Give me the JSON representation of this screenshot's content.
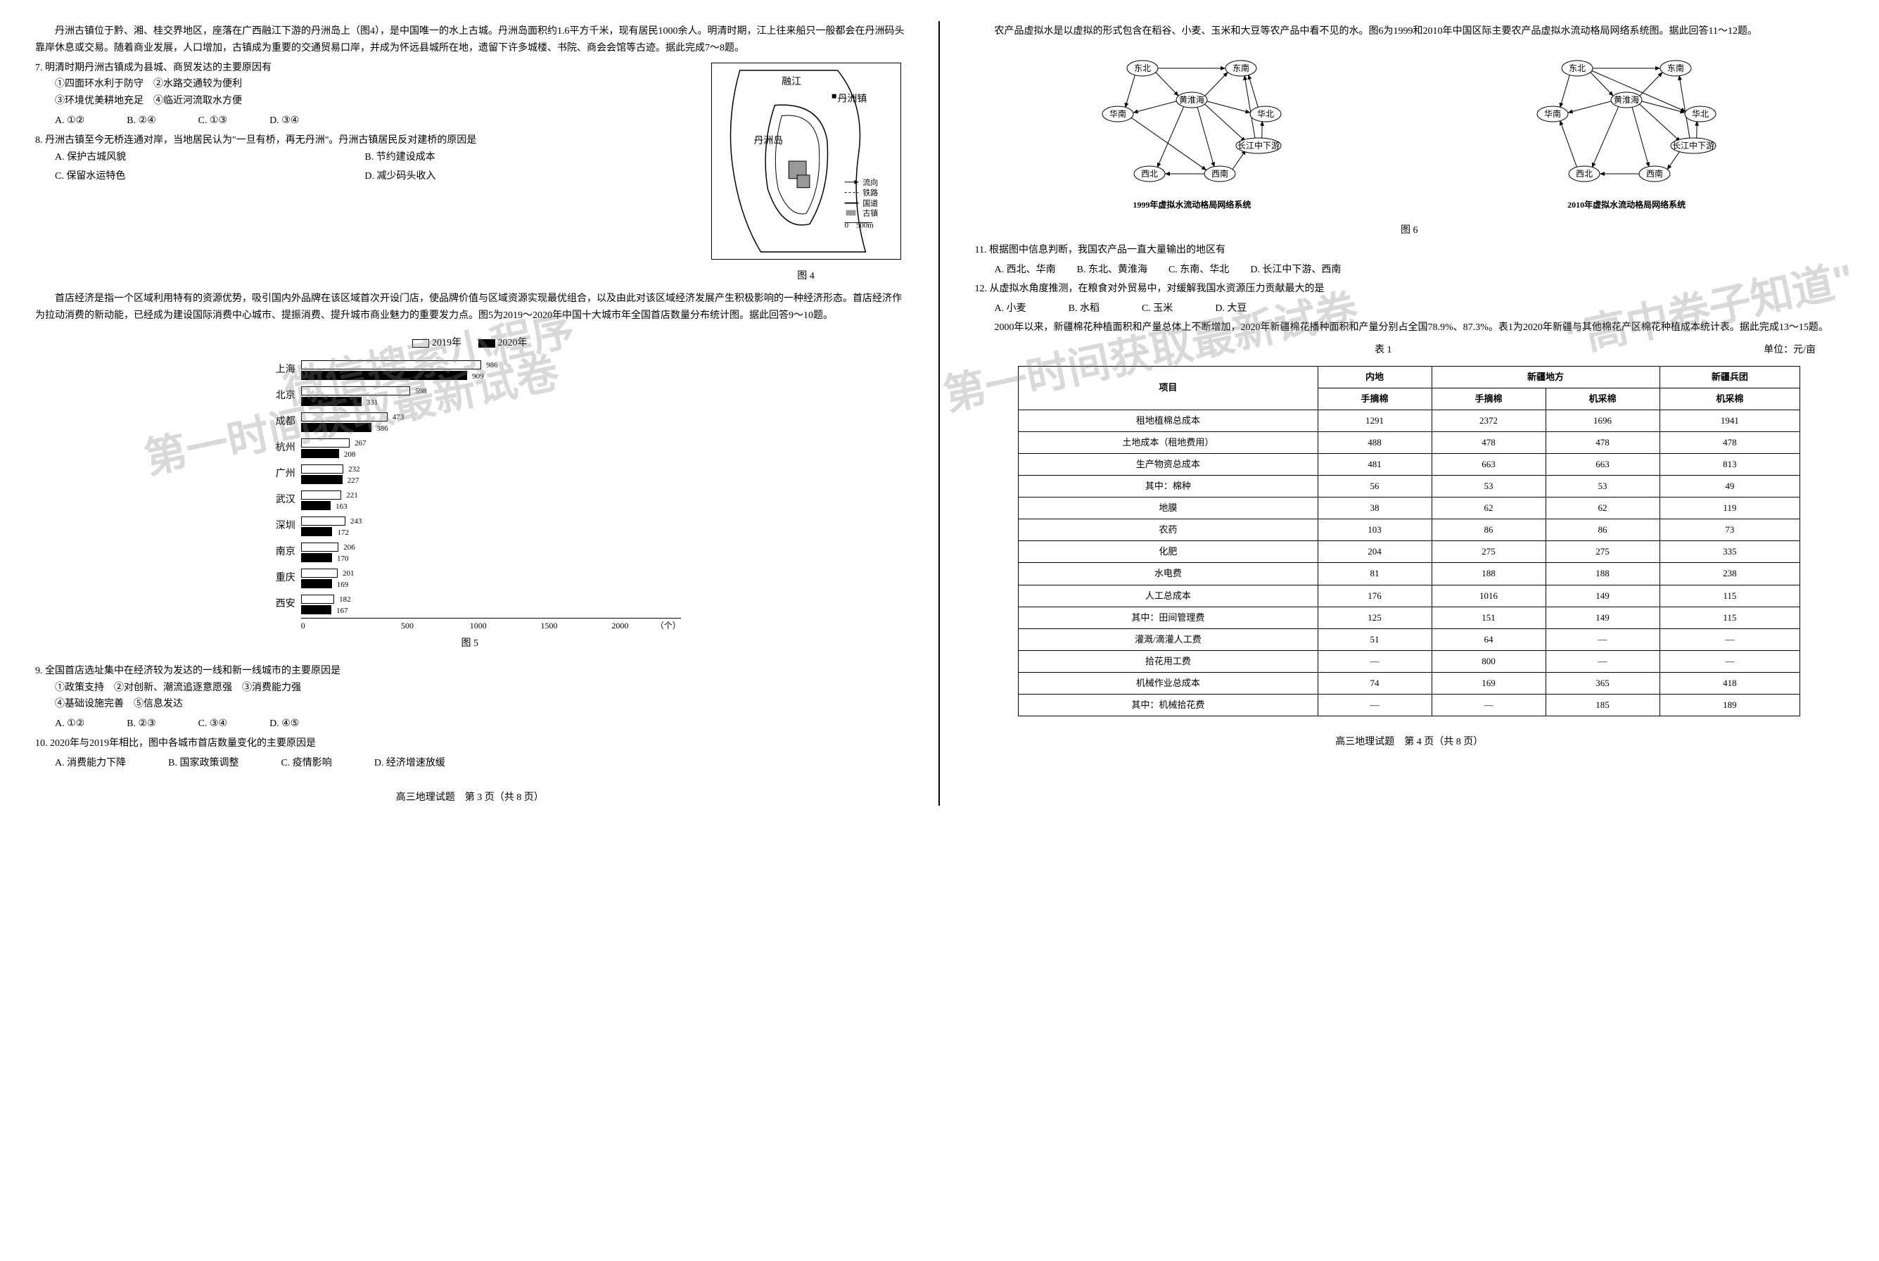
{
  "left": {
    "intro7": "丹洲古镇位于黔、湘、桂交界地区，座落在广西融江下游的丹洲岛上（图4），是中国唯一的水上古城。丹洲岛面积约1.6平方千米，现有居民1000余人。明清时期，江上往来船只一般都会在丹洲码头靠岸休息或交易。随着商业发展，人口增加，古镇成为重要的交通贸易口岸，并成为怀远县城所在地，遗留下许多城楼、书院、商会会馆等古迹。据此完成7～8题。",
    "q7": "7. 明清时期丹洲古镇成为县城、商贸发达的主要原因有",
    "q7_subs": [
      "①四面环水利于防守　②水路交通较为便利",
      "③环境优美耕地充足　④临近河流取水方便"
    ],
    "q7_opts": [
      "A. ①②",
      "B. ②④",
      "C. ①③",
      "D. ③④"
    ],
    "q8": "8. 丹洲古镇至今无桥连通对岸，当地居民认为\"一旦有桥，再无丹洲\"。丹洲古镇居民反对建桥的原因是",
    "q8_opts": [
      "A. 保护古城风貌",
      "B. 节约建设成本",
      "C. 保留水运特色",
      "D. 减少码头收入"
    ],
    "fig4_caption": "图 4",
    "fig4_labels": {
      "river": "融江",
      "town": "丹洲镇",
      "island": "丹洲岛",
      "flow": "流向",
      "rail": "铁路",
      "road": "国道",
      "ancient": "古镇",
      "scale": "0    500m"
    },
    "intro9": "首店经济是指一个区域利用特有的资源优势，吸引国内外品牌在该区域首次开设门店，使品牌价值与区域资源实现最优组合，以及由此对该区域经济发展产生积极影响的一种经济形态。首店经济作为拉动消费的新动能，已经成为建设国际消费中心城市、提振消费、提升城市商业魅力的重要发力点。图5为2019～2020年中国十大城市年全国首店数量分布统计图。据此回答9～10题。",
    "chart": {
      "legend": [
        "2019年",
        "2020年"
      ],
      "cities": [
        "上海",
        "北京",
        "成都",
        "杭州",
        "广州",
        "武汉",
        "深圳",
        "南京",
        "重庆",
        "西安"
      ],
      "y2019": [
        986,
        598,
        473,
        267,
        232,
        221,
        243,
        206,
        201,
        182
      ],
      "y2020": [
        909,
        331,
        386,
        208,
        227,
        163,
        172,
        170,
        169,
        167
      ],
      "xmax": 2000,
      "xticks": [
        0,
        500,
        1000,
        1500,
        2000
      ],
      "xunit": "（个）"
    },
    "fig5_caption": "图 5",
    "q9": "9. 全国首店选址集中在经济较为发达的一线和新一线城市的主要原因是",
    "q9_subs": [
      "①政策支持　②对创新、潮流追逐意愿强　③消费能力强",
      "④基础设施完善　⑤信息发达"
    ],
    "q9_opts": [
      "A. ①②",
      "B. ②③",
      "C. ③④",
      "D. ④⑤"
    ],
    "q10": "10. 2020年与2019年相比，图中各城市首店数量变化的主要原因是",
    "q10_opts": [
      "A. 消费能力下降",
      "B. 国家政策调整",
      "C. 疫情影响",
      "D. 经济增速放缓"
    ],
    "footer": "高三地理试题　第 3 页（共 8 页）"
  },
  "right": {
    "intro11": "农产品虚拟水是以虚拟的形式包含在稻谷、小麦、玉米和大豆等农产品中看不见的水。图6为1999和2010年中国区际主要农产品虚拟水流动格局网络系统图。据此回答11～12题。",
    "network": {
      "nodes": [
        "东北",
        "东南",
        "黄淮海",
        "华南",
        "华北",
        "长江中下游",
        "西北",
        "西南"
      ],
      "cap1999": "1999年虚拟水流动格局网络系统",
      "cap2010": "2010年虚拟水流动格局网络系统"
    },
    "fig6_caption": "图 6",
    "q11": "11. 根据图中信息判断，我国农产品一直大量输出的地区有",
    "q11_opts": [
      "A. 西北、华南",
      "B. 东北、黄淮海",
      "C. 东南、华北",
      "D. 长江中下游、西南"
    ],
    "q12": "12. 从虚拟水角度推测，在粮食对外贸易中，对缓解我国水资源压力贡献最大的是",
    "q12_opts": [
      "A. 小麦",
      "B. 水稻",
      "C. 玉米",
      "D. 大豆"
    ],
    "intro13": "2000年以来，新疆棉花种植面积和产量总体上不断增加，2020年新疆棉花播种面积和产量分别占全国78.9%、87.3%。表1为2020年新疆与其他棉花产区棉花种植成本统计表。据此完成13～15题。",
    "table_title": "表 1",
    "table_unit": "单位：元/亩",
    "table": {
      "header1": [
        "项目",
        "内地",
        "新疆地方",
        "",
        "新疆兵团"
      ],
      "header2": [
        "",
        "手摘棉",
        "手摘棉",
        "机采棉",
        "机采棉"
      ],
      "rows": [
        [
          "租地植棉总成本",
          "1291",
          "2372",
          "1696",
          "1941"
        ],
        [
          "土地成本（租地费用）",
          "488",
          "478",
          "478",
          "478"
        ],
        [
          "生产物资总成本",
          "481",
          "663",
          "663",
          "813"
        ],
        [
          "其中：棉种",
          "56",
          "53",
          "53",
          "49"
        ],
        [
          "地膜",
          "38",
          "62",
          "62",
          "119"
        ],
        [
          "农药",
          "103",
          "86",
          "86",
          "73"
        ],
        [
          "化肥",
          "204",
          "275",
          "275",
          "335"
        ],
        [
          "水电费",
          "81",
          "188",
          "188",
          "238"
        ],
        [
          "人工总成本",
          "176",
          "1016",
          "149",
          "115"
        ],
        [
          "其中：田间管理费",
          "125",
          "151",
          "149",
          "115"
        ],
        [
          "灌溉/滴灌人工费",
          "51",
          "64",
          "—",
          "—"
        ],
        [
          "拾花用工费",
          "—",
          "800",
          "—",
          "—"
        ],
        [
          "机械作业总成本",
          "74",
          "169",
          "365",
          "418"
        ],
        [
          "其中：机械拾花费",
          "—",
          "—",
          "185",
          "189"
        ]
      ]
    },
    "footer": "高三地理试题　第 4 页（共 8 页）"
  },
  "watermarks": {
    "w1": "微信搜索小程序",
    "w2": "第一时间获取最新试卷",
    "w3": "\"高中卷子知道\"",
    "w4": "第一时间获取最新试卷"
  }
}
